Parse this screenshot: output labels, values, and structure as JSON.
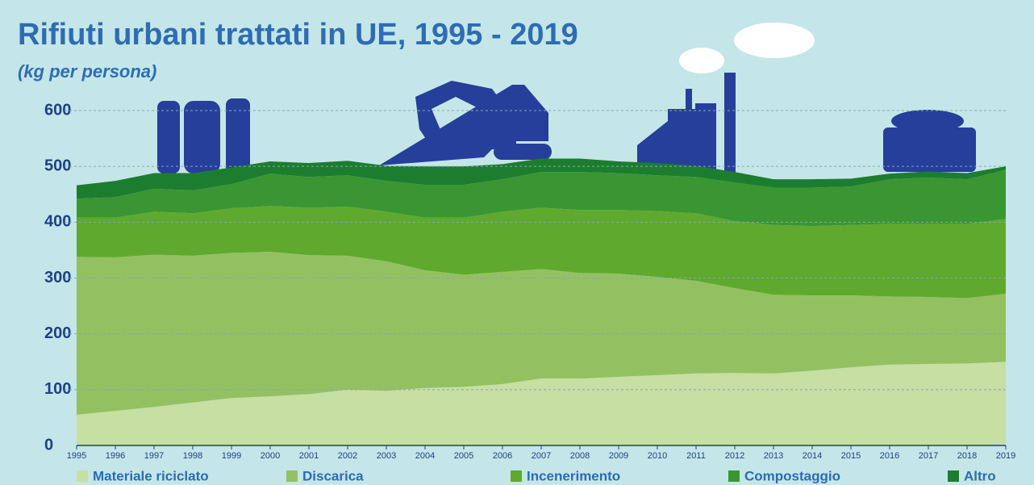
{
  "chart_data": {
    "type": "stacked-area",
    "title": "Rifiuti urbani trattati in UE, 1995 - 2019",
    "subtitle": "(kg per persona)",
    "x": [
      1995,
      1996,
      1997,
      1998,
      1999,
      2000,
      2001,
      2002,
      2003,
      2004,
      2005,
      2006,
      2007,
      2008,
      2009,
      2010,
      2011,
      2012,
      2013,
      2014,
      2015,
      2016,
      2017,
      2018,
      2019
    ],
    "xlim": [
      1995,
      2019
    ],
    "ylim": [
      0,
      600
    ],
    "yticks": [
      0,
      100,
      200,
      300,
      400,
      500,
      600
    ],
    "grid": true,
    "series": [
      {
        "name": "Materiale riciclato",
        "color": "#c6dfa2",
        "values": [
          55,
          62,
          69,
          77,
          85,
          88,
          92,
          100,
          98,
          103,
          105,
          110,
          120,
          120,
          123,
          126,
          129,
          130,
          129,
          134,
          140,
          145,
          146,
          147,
          150
        ]
      },
      {
        "name": "Discarica",
        "color": "#93c162",
        "values": [
          283,
          275,
          273,
          263,
          260,
          259,
          249,
          240,
          232,
          211,
          201,
          201,
          196,
          189,
          185,
          176,
          166,
          152,
          141,
          135,
          129,
          122,
          120,
          117,
          122
        ]
      },
      {
        "name": "Incenerimento",
        "color": "#5fa92e",
        "values": [
          70,
          71,
          77,
          76,
          80,
          82,
          85,
          88,
          89,
          94,
          102,
          108,
          110,
          113,
          114,
          118,
          121,
          120,
          125,
          124,
          126,
          130,
          131,
          133,
          134
        ]
      },
      {
        "name": "Compostaggio",
        "color": "#3a9632",
        "values": [
          34,
          37,
          41,
          41,
          43,
          58,
          55,
          56,
          55,
          59,
          59,
          58,
          64,
          68,
          66,
          64,
          65,
          69,
          67,
          69,
          69,
          80,
          83,
          80,
          88
        ]
      },
      {
        "name": "Altro",
        "color": "#1d7d2f",
        "values": [
          24,
          29,
          28,
          31,
          30,
          22,
          25,
          26,
          27,
          33,
          33,
          27,
          24,
          24,
          21,
          22,
          20,
          19,
          15,
          15,
          14,
          10,
          11,
          11,
          6
        ]
      }
    ]
  }
}
